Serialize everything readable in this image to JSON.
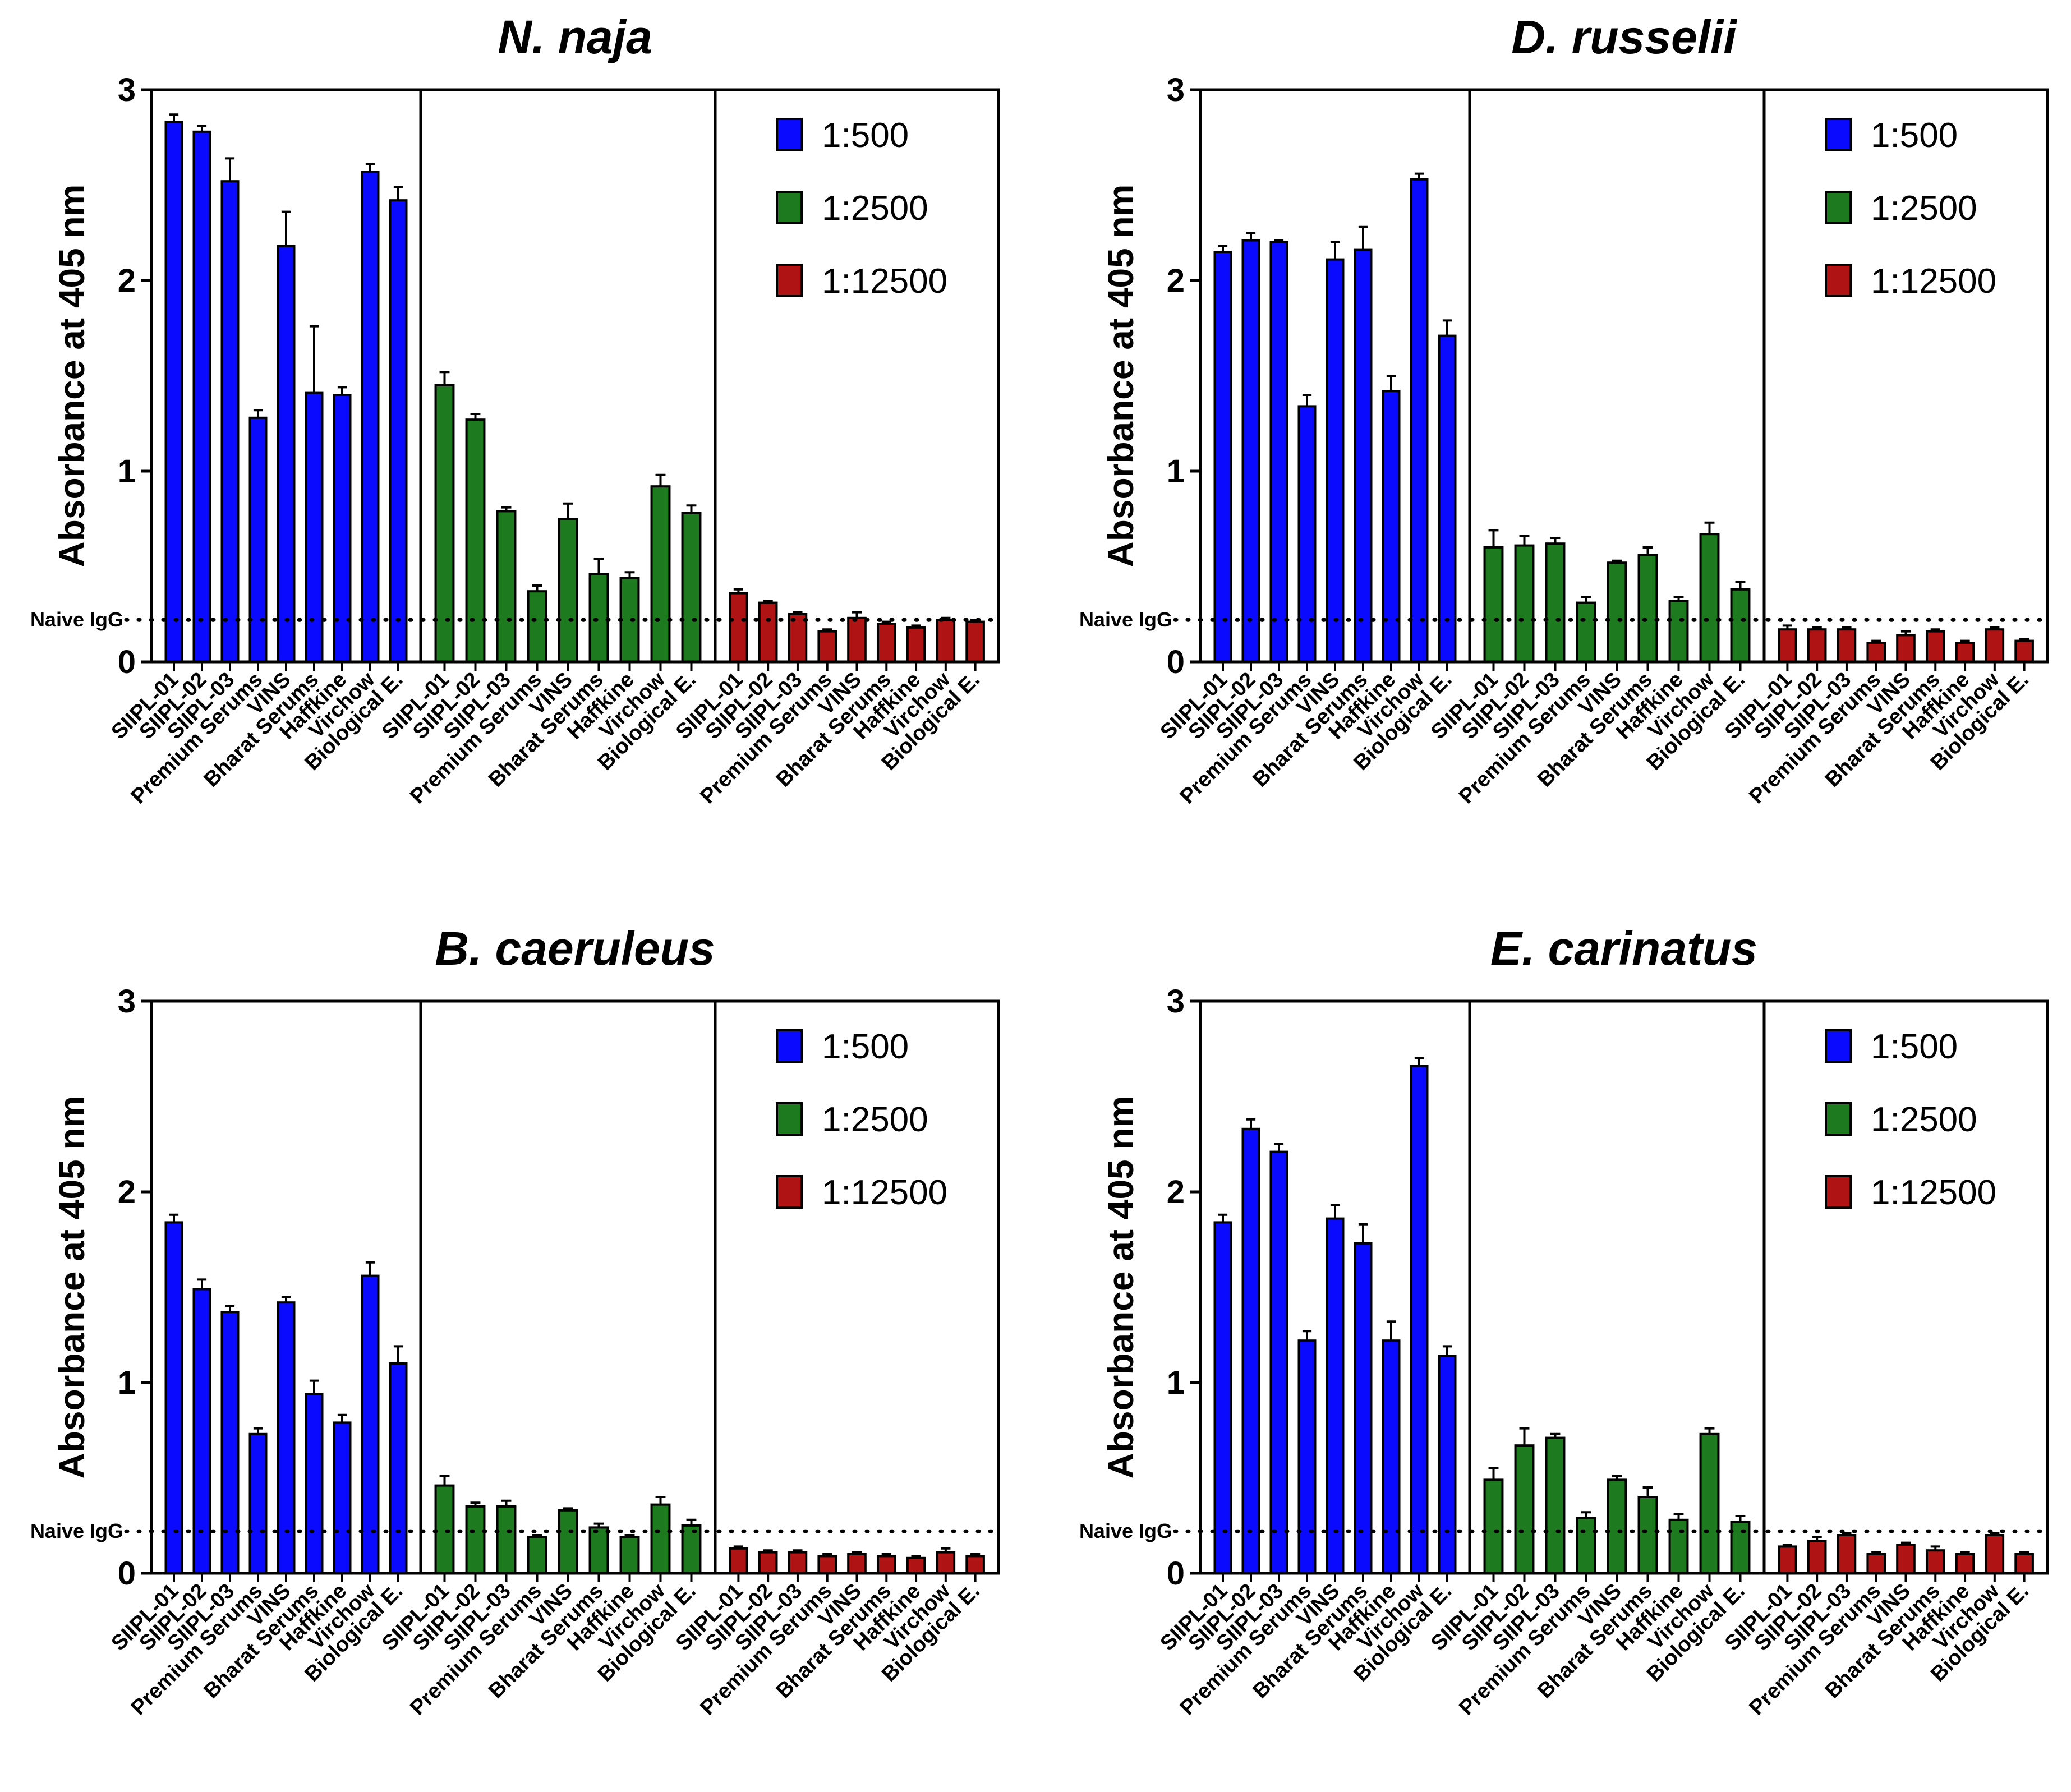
{
  "figure": {
    "ylabel": "Absorbance at 405 nm",
    "naive_label": "Naive IgG",
    "legend": [
      {
        "label": "1:500",
        "color": "#0a0aff"
      },
      {
        "label": "1:2500",
        "color": "#1e7a1e"
      },
      {
        "label": "1:12500",
        "color": "#b01313"
      }
    ],
    "yticks": [
      "0",
      "1",
      "2",
      "3"
    ]
  },
  "chart_data": [
    {
      "type": "bar",
      "title": "N. naja",
      "ylabel": "Absorbance at 405 nm",
      "ylim": [
        0,
        3
      ],
      "naive_igg": 0.22,
      "categories": [
        "SIIPL-01",
        "SIIPL-02",
        "SIIPL-03",
        "Premium Serums",
        "VINS",
        "Bharat Serums",
        "Haffkine",
        "Virchow",
        "Biological E."
      ],
      "series": [
        {
          "name": "1:500",
          "values": [
            2.83,
            2.78,
            2.52,
            1.28,
            2.18,
            1.41,
            1.4,
            2.57,
            2.42
          ],
          "errors": [
            0.04,
            0.03,
            0.12,
            0.04,
            0.18,
            0.35,
            0.04,
            0.04,
            0.07
          ]
        },
        {
          "name": "1:2500",
          "values": [
            1.45,
            1.27,
            0.79,
            0.37,
            0.75,
            0.46,
            0.44,
            0.92,
            0.78
          ],
          "errors": [
            0.07,
            0.03,
            0.02,
            0.03,
            0.08,
            0.08,
            0.03,
            0.06,
            0.04
          ]
        },
        {
          "name": "1:12500",
          "values": [
            0.36,
            0.31,
            0.25,
            0.16,
            0.23,
            0.2,
            0.18,
            0.22,
            0.21
          ],
          "errors": [
            0.02,
            0.01,
            0.01,
            0.01,
            0.03,
            0.01,
            0.01,
            0.01,
            0.01
          ]
        }
      ]
    },
    {
      "type": "bar",
      "title": "D. russelii",
      "ylabel": "Absorbance at 405 nm",
      "ylim": [
        0,
        3
      ],
      "naive_igg": 0.22,
      "categories": [
        "SIIPL-01",
        "SIIPL-02",
        "SIIPL-03",
        "Premium Serums",
        "VINS",
        "Bharat Serums",
        "Haffkine",
        "Virchow",
        "Biological E."
      ],
      "series": [
        {
          "name": "1:500",
          "values": [
            2.15,
            2.21,
            2.2,
            1.34,
            2.11,
            2.16,
            1.42,
            2.53,
            1.71
          ],
          "errors": [
            0.03,
            0.04,
            0.01,
            0.06,
            0.09,
            0.12,
            0.08,
            0.03,
            0.08
          ]
        },
        {
          "name": "1:2500",
          "values": [
            0.6,
            0.61,
            0.62,
            0.31,
            0.52,
            0.56,
            0.32,
            0.67,
            0.38
          ],
          "errors": [
            0.09,
            0.05,
            0.03,
            0.03,
            0.01,
            0.04,
            0.02,
            0.06,
            0.04
          ]
        },
        {
          "name": "1:12500",
          "values": [
            0.17,
            0.17,
            0.17,
            0.1,
            0.14,
            0.16,
            0.1,
            0.17,
            0.11
          ],
          "errors": [
            0.02,
            0.01,
            0.01,
            0.01,
            0.02,
            0.01,
            0.01,
            0.01,
            0.01
          ]
        }
      ]
    },
    {
      "type": "bar",
      "title": "B. caeruleus",
      "ylabel": "Absorbance at 405 nm",
      "ylim": [
        0,
        3
      ],
      "naive_igg": 0.22,
      "categories": [
        "SIIPL-01",
        "SIIPL-02",
        "SIIPL-03",
        "Premium Serums",
        "VINS",
        "Bharat Serums",
        "Haffkine",
        "Virchow",
        "Biological E."
      ],
      "series": [
        {
          "name": "1:500",
          "values": [
            1.84,
            1.49,
            1.37,
            0.73,
            1.42,
            0.94,
            0.79,
            1.56,
            1.1
          ],
          "errors": [
            0.04,
            0.05,
            0.03,
            0.03,
            0.03,
            0.07,
            0.04,
            0.07,
            0.09
          ]
        },
        {
          "name": "1:2500",
          "values": [
            0.46,
            0.35,
            0.35,
            0.19,
            0.33,
            0.24,
            0.19,
            0.36,
            0.25
          ],
          "errors": [
            0.05,
            0.02,
            0.03,
            0.01,
            0.01,
            0.02,
            0.01,
            0.04,
            0.03
          ]
        },
        {
          "name": "1:12500",
          "values": [
            0.13,
            0.11,
            0.11,
            0.09,
            0.1,
            0.09,
            0.08,
            0.11,
            0.09
          ],
          "errors": [
            0.01,
            0.01,
            0.01,
            0.01,
            0.01,
            0.01,
            0.01,
            0.02,
            0.01
          ]
        }
      ]
    },
    {
      "type": "bar",
      "title": "E. carinatus",
      "ylabel": "Absorbance at 405 nm",
      "ylim": [
        0,
        3
      ],
      "naive_igg": 0.22,
      "categories": [
        "SIIPL-01",
        "SIIPL-02",
        "SIIPL-03",
        "Premium Serums",
        "VINS",
        "Bharat Serums",
        "Haffkine",
        "Virchow",
        "Biological E."
      ],
      "series": [
        {
          "name": "1:500",
          "values": [
            1.84,
            2.33,
            2.21,
            1.22,
            1.86,
            1.73,
            1.22,
            2.66,
            1.14
          ],
          "errors": [
            0.04,
            0.05,
            0.04,
            0.05,
            0.07,
            0.1,
            0.1,
            0.04,
            0.05
          ]
        },
        {
          "name": "1:2500",
          "values": [
            0.49,
            0.67,
            0.71,
            0.29,
            0.49,
            0.4,
            0.28,
            0.73,
            0.27
          ],
          "errors": [
            0.06,
            0.09,
            0.02,
            0.03,
            0.02,
            0.05,
            0.03,
            0.03,
            0.03
          ]
        },
        {
          "name": "1:12500",
          "values": [
            0.14,
            0.17,
            0.2,
            0.1,
            0.15,
            0.12,
            0.1,
            0.2,
            0.1
          ],
          "errors": [
            0.01,
            0.02,
            0.01,
            0.01,
            0.01,
            0.02,
            0.01,
            0.01,
            0.01
          ]
        }
      ]
    }
  ]
}
